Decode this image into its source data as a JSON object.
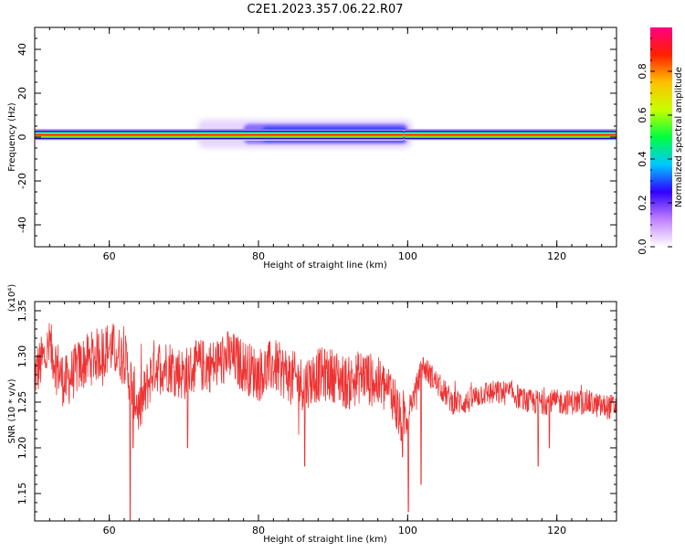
{
  "title": "C2E1.2023.357.06.22.R07",
  "chart_data": [
    {
      "type": "heatmap",
      "xlabel": "Height of straight line (km)",
      "ylabel": "Frequency (Hz)",
      "xlim": [
        50,
        128
      ],
      "ylim": [
        -50,
        50
      ],
      "x_ticks": [
        60,
        80,
        100,
        120
      ],
      "y_ticks": [
        40,
        20,
        0,
        -20,
        -40
      ],
      "colorbar": {
        "label": "Normalized spectral amplitude",
        "range": [
          0,
          1
        ],
        "ticks": [
          0.0,
          0.2,
          0.4,
          0.6,
          0.8
        ],
        "colors": [
          "#ffffff",
          "#c080ff",
          "#3000ff",
          "#00c8ff",
          "#00ff40",
          "#c8ff00",
          "#ffc000",
          "#ff2000",
          "#ff0080"
        ]
      },
      "bands": [
        {
          "x_start": 50,
          "x_end": 99.5,
          "center_freq": 1,
          "core_halfwidth": 1,
          "halo_halfwidth": 2
        },
        {
          "x_start": 99.5,
          "x_end": 128,
          "center_freq": 1,
          "core_halfwidth": 1,
          "halo_halfwidth": 2
        }
      ],
      "broad_region": {
        "x_start": 78,
        "x_end": 100,
        "freq_min": -3,
        "freq_max": 6,
        "peak_amplitude": 0.35
      }
    },
    {
      "type": "line",
      "xlabel": "Height of straight line (km)",
      "ylabel": "SNR (10 * v/v)",
      "y_multiplier": "(x10⁴)",
      "xlim": [
        50,
        128
      ],
      "ylim": [
        1.12,
        1.36
      ],
      "x_ticks": [
        60,
        80,
        100,
        120
      ],
      "y_ticks": [
        1.35,
        1.3,
        1.25,
        1.2,
        1.15
      ],
      "color": "#ee3333",
      "series_profile": [
        [
          50,
          1.28
        ],
        [
          52,
          1.31
        ],
        [
          54,
          1.27
        ],
        [
          56,
          1.29
        ],
        [
          58,
          1.3
        ],
        [
          60,
          1.31
        ],
        [
          62,
          1.3
        ],
        [
          63,
          1.27
        ],
        [
          64,
          1.24
        ],
        [
          66,
          1.29
        ],
        [
          68,
          1.29
        ],
        [
          70,
          1.28
        ],
        [
          72,
          1.29
        ],
        [
          74,
          1.29
        ],
        [
          76,
          1.3
        ],
        [
          78,
          1.29
        ],
        [
          80,
          1.28
        ],
        [
          82,
          1.29
        ],
        [
          84,
          1.28
        ],
        [
          86,
          1.27
        ],
        [
          88,
          1.28
        ],
        [
          90,
          1.28
        ],
        [
          92,
          1.27
        ],
        [
          94,
          1.28
        ],
        [
          96,
          1.27
        ],
        [
          98,
          1.26
        ],
        [
          99,
          1.23
        ],
        [
          100,
          1.24
        ],
        [
          101,
          1.26
        ],
        [
          102,
          1.29
        ],
        [
          104,
          1.27
        ],
        [
          106,
          1.25
        ],
        [
          108,
          1.25
        ],
        [
          110,
          1.26
        ],
        [
          112,
          1.26
        ],
        [
          114,
          1.26
        ],
        [
          116,
          1.25
        ],
        [
          118,
          1.25
        ],
        [
          120,
          1.25
        ],
        [
          122,
          1.25
        ],
        [
          124,
          1.25
        ],
        [
          126,
          1.245
        ],
        [
          128,
          1.245
        ]
      ],
      "spikes": [
        [
          62.8,
          1.12
        ],
        [
          63.2,
          1.2
        ],
        [
          70.5,
          1.2
        ],
        [
          86.2,
          1.18
        ],
        [
          99.3,
          1.19
        ],
        [
          100.1,
          1.13
        ],
        [
          101.8,
          1.16
        ],
        [
          117.5,
          1.18
        ],
        [
          119,
          1.2
        ]
      ]
    }
  ]
}
